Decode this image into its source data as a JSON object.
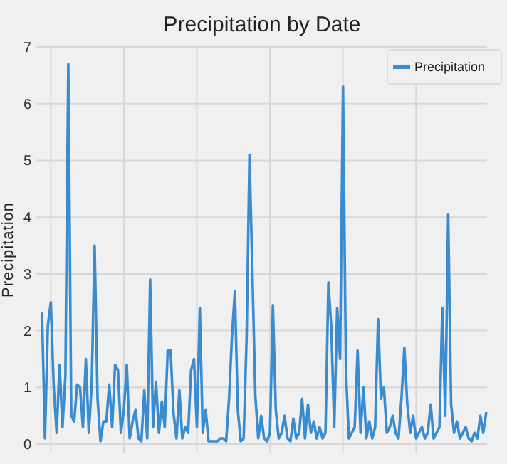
{
  "chart_data": {
    "type": "line",
    "title": "Precipitation by Date",
    "ylabel": "Precipitation",
    "categories": [
      null,
      null,
      null,
      null,
      null,
      null,
      null,
      null,
      null,
      null,
      null,
      null,
      null,
      null,
      null,
      null,
      null,
      null,
      null,
      null,
      null,
      null,
      null,
      null,
      null,
      null,
      null,
      null,
      null,
      null,
      null,
      null,
      null,
      null,
      null,
      null,
      null,
      null,
      null,
      null,
      null,
      null,
      null,
      null,
      null,
      null,
      null,
      null,
      null,
      null,
      null,
      null,
      null,
      null,
      null,
      null,
      null,
      null,
      null,
      null,
      null,
      null,
      null,
      null,
      null,
      null,
      null,
      null,
      null,
      null,
      null,
      null,
      null,
      null,
      null,
      null,
      null,
      null,
      null,
      null,
      null,
      null,
      null,
      null,
      null,
      null,
      null,
      null,
      null,
      null,
      null,
      null,
      null,
      null,
      null,
      null,
      null,
      null,
      null,
      null,
      null,
      null,
      null,
      null,
      null,
      null,
      null,
      null,
      null,
      null,
      null,
      null,
      null,
      null,
      null,
      null,
      null,
      null,
      null,
      null,
      null,
      null,
      null,
      null,
      null,
      null,
      null,
      null,
      null,
      null,
      null,
      null,
      null,
      null,
      null,
      null,
      null,
      null,
      null,
      null,
      null,
      null,
      null,
      null,
      null,
      null,
      null,
      null,
      null,
      null,
      null,
      null,
      null
    ],
    "series": [
      {
        "name": "Precipitation",
        "color": "#3a8cd0",
        "values": [
          2.3,
          0.1,
          2.1,
          2.5,
          1.0,
          0.2,
          1.4,
          0.3,
          1.2,
          6.7,
          0.5,
          0.4,
          1.05,
          1.0,
          0.3,
          1.5,
          0.2,
          1.05,
          3.5,
          0.8,
          0.05,
          0.4,
          0.4,
          1.05,
          0.3,
          1.4,
          1.3,
          0.2,
          0.6,
          1.4,
          0.1,
          0.4,
          0.6,
          0.1,
          0.05,
          0.95,
          0.1,
          2.9,
          0.3,
          1.1,
          0.2,
          0.75,
          0.3,
          1.65,
          1.65,
          0.55,
          0.1,
          0.95,
          0.1,
          0.3,
          0.2,
          1.3,
          1.5,
          0.3,
          2.4,
          0.2,
          0.6,
          0.05,
          0.05,
          0.05,
          0.05,
          0.1,
          0.1,
          0.05,
          0.8,
          1.9,
          2.7,
          0.6,
          0.05,
          0.1,
          1.85,
          5.1,
          3.0,
          0.85,
          0.1,
          0.5,
          0.1,
          0.05,
          0.2,
          2.45,
          0.6,
          0.1,
          0.2,
          0.5,
          0.1,
          0.05,
          0.45,
          0.1,
          0.2,
          0.8,
          0.1,
          0.7,
          0.2,
          0.4,
          0.1,
          0.3,
          0.1,
          0.2,
          2.85,
          2.05,
          0.3,
          2.4,
          1.5,
          6.3,
          1.3,
          0.1,
          0.2,
          0.3,
          1.65,
          0.2,
          1.0,
          0.1,
          0.4,
          0.1,
          0.3,
          2.2,
          0.8,
          1.0,
          0.2,
          0.3,
          0.5,
          0.2,
          0.1,
          0.8,
          1.7,
          0.7,
          0.2,
          0.5,
          0.1,
          0.2,
          0.3,
          0.1,
          0.2,
          0.7,
          0.1,
          0.2,
          0.3,
          2.4,
          0.5,
          4.05,
          0.7,
          0.2,
          0.4,
          0.1,
          0.2,
          0.3,
          0.1,
          0.05,
          0.2,
          0.1,
          0.5,
          0.2,
          0.55
        ]
      }
    ],
    "ylim": [
      -0.15,
      7
    ],
    "yticks": [
      0,
      1,
      2,
      3,
      4,
      5,
      6,
      7
    ],
    "grid": true,
    "legend": "top right"
  }
}
